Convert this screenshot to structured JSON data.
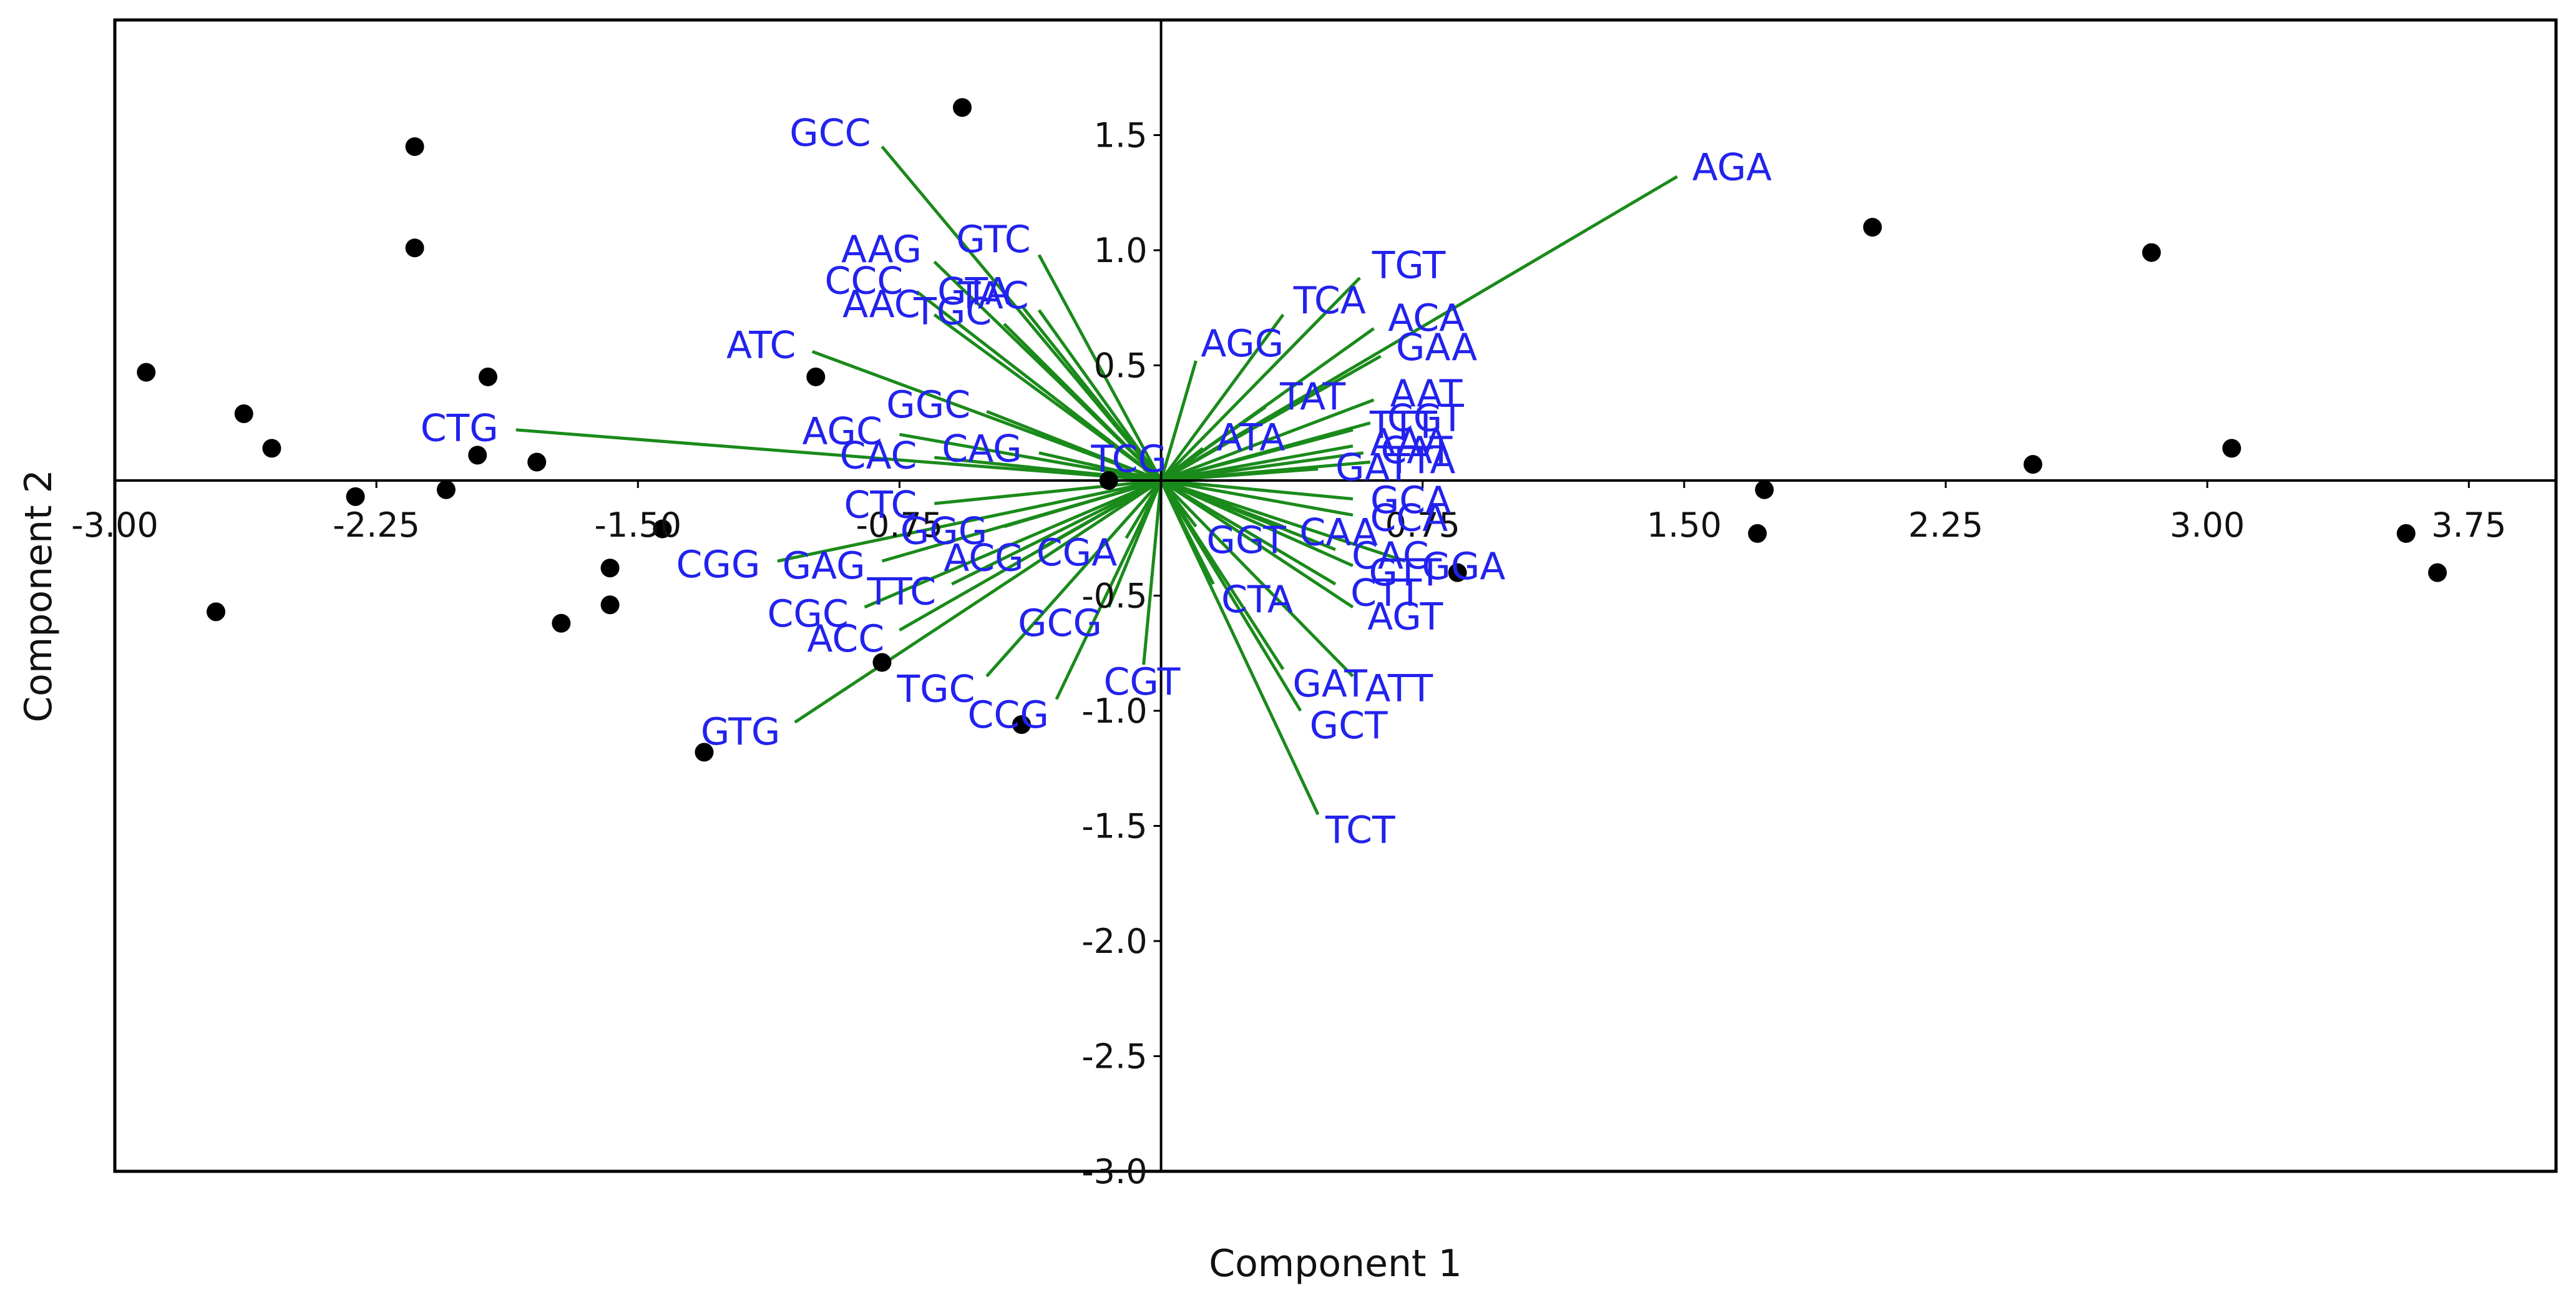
{
  "chart_data": {
    "type": "scatter",
    "subtype": "biplot",
    "title": "",
    "xlabel": "Component 1",
    "ylabel": "Component 2",
    "xlim": [
      -3.0,
      4.0
    ],
    "ylim": [
      -3.0,
      2.0
    ],
    "x_ticks": [
      "-3.00",
      "-2.25",
      "-1.50",
      "-0.75",
      "0.75",
      "1.50",
      "2.25",
      "3.00",
      "3.75"
    ],
    "y_ticks": [
      "1.5",
      "1.0",
      "0.5",
      "-0.5",
      "-1.0",
      "-1.5",
      "-2.0",
      "-2.5",
      "-3.0"
    ],
    "grid": false,
    "colors": {
      "points": "#000000",
      "vectors": "#1a8a1a",
      "vector_labels": "#2222ee",
      "axes": "#000000"
    },
    "scores": [
      {
        "x": -2.91,
        "y": 0.47
      },
      {
        "x": -2.71,
        "y": -0.57
      },
      {
        "x": -2.63,
        "y": 0.29
      },
      {
        "x": -2.55,
        "y": 0.14
      },
      {
        "x": -2.31,
        "y": -0.07
      },
      {
        "x": -2.14,
        "y": 1.45
      },
      {
        "x": -2.14,
        "y": 1.01
      },
      {
        "x": -2.05,
        "y": -0.04
      },
      {
        "x": -1.96,
        "y": 0.11
      },
      {
        "x": -1.93,
        "y": 0.45
      },
      {
        "x": -1.79,
        "y": 0.08
      },
      {
        "x": -1.72,
        "y": -0.62
      },
      {
        "x": -1.58,
        "y": -0.38
      },
      {
        "x": -1.58,
        "y": -0.54
      },
      {
        "x": -1.43,
        "y": -0.21
      },
      {
        "x": -1.31,
        "y": -1.18
      },
      {
        "x": -0.99,
        "y": 0.45
      },
      {
        "x": -0.8,
        "y": -0.79
      },
      {
        "x": -0.57,
        "y": 1.62
      },
      {
        "x": -0.4,
        "y": -1.06
      },
      {
        "x": -0.15,
        "y": 0.0
      },
      {
        "x": 0.85,
        "y": -0.4
      },
      {
        "x": 1.71,
        "y": -0.23
      },
      {
        "x": 1.73,
        "y": -0.04
      },
      {
        "x": 2.04,
        "y": 1.1
      },
      {
        "x": 2.5,
        "y": 0.07
      },
      {
        "x": 2.84,
        "y": 0.99
      },
      {
        "x": 3.07,
        "y": 0.14
      },
      {
        "x": 3.57,
        "y": -0.23
      },
      {
        "x": 3.66,
        "y": -0.4
      }
    ],
    "loadings": [
      {
        "label": "AGA",
        "x": 1.48,
        "y": 1.32
      },
      {
        "label": "TGT",
        "x": 0.57,
        "y": 0.88
      },
      {
        "label": "TCA",
        "x": 0.35,
        "y": 0.72
      },
      {
        "label": "ACA",
        "x": 0.61,
        "y": 0.66
      },
      {
        "label": "AGG",
        "x": 0.1,
        "y": 0.52
      },
      {
        "label": "GAA",
        "x": 0.63,
        "y": 0.54
      },
      {
        "label": "TAT",
        "x": 0.3,
        "y": 0.32
      },
      {
        "label": "AAT",
        "x": 0.61,
        "y": 0.35
      },
      {
        "label": "TTT",
        "x": 0.55,
        "y": 0.22
      },
      {
        "label": "CGT",
        "x": 0.6,
        "y": 0.25
      },
      {
        "label": "ATA",
        "x": 0.12,
        "y": 0.14
      },
      {
        "label": "AAA",
        "x": 0.55,
        "y": 0.15
      },
      {
        "label": "CAT",
        "x": 0.58,
        "y": 0.12
      },
      {
        "label": "TTA",
        "x": 0.6,
        "y": 0.08
      },
      {
        "label": "GAT",
        "x": 0.45,
        "y": 0.05
      },
      {
        "label": "TCG",
        "x": -0.05,
        "y": 0.05
      },
      {
        "label": "GCA",
        "x": 0.55,
        "y": -0.08
      },
      {
        "label": "CCA",
        "x": 0.55,
        "y": -0.15
      },
      {
        "label": "CAA",
        "x": 0.35,
        "y": -0.2
      },
      {
        "label": "CAC",
        "x": 0.5,
        "y": -0.3
      },
      {
        "label": "GTT",
        "x": 0.55,
        "y": -0.37
      },
      {
        "label": "GGA",
        "x": 0.7,
        "y": -0.35
      },
      {
        "label": "CTT",
        "x": 0.5,
        "y": -0.45
      },
      {
        "label": "AGT",
        "x": 0.55,
        "y": -0.55
      },
      {
        "label": "GGT",
        "x": 0.1,
        "y": -0.2
      },
      {
        "label": "CTA",
        "x": 0.15,
        "y": -0.45
      },
      {
        "label": "GAT",
        "x": 0.35,
        "y": -0.82
      },
      {
        "label": "ATT",
        "x": 0.55,
        "y": -0.85
      },
      {
        "label": "GCT",
        "x": 0.4,
        "y": -1.0
      },
      {
        "label": "TCT",
        "x": 0.45,
        "y": -1.45
      },
      {
        "label": "CGT",
        "x": -0.05,
        "y": -0.8
      },
      {
        "label": "CGA",
        "x": -0.1,
        "y": -0.25
      },
      {
        "label": "GCG",
        "x": -0.15,
        "y": -0.55
      },
      {
        "label": "CCG",
        "x": -0.3,
        "y": -0.95
      },
      {
        "label": "TGC",
        "x": -0.5,
        "y": -0.85
      },
      {
        "label": "ACG",
        "x": -0.35,
        "y": -0.3
      },
      {
        "label": "GGG",
        "x": -0.45,
        "y": -0.2
      },
      {
        "label": "CTC",
        "x": -0.65,
        "y": -0.1
      },
      {
        "label": "TTC",
        "x": -0.6,
        "y": -0.45
      },
      {
        "label": "ACC",
        "x": -0.75,
        "y": -0.65
      },
      {
        "label": "GAG",
        "x": -0.8,
        "y": -0.35
      },
      {
        "label": "CGC",
        "x": -0.85,
        "y": -0.55
      },
      {
        "label": "GTG",
        "x": -1.05,
        "y": -1.05
      },
      {
        "label": "CGG",
        "x": -1.1,
        "y": -0.35
      },
      {
        "label": "CTG",
        "x": -1.85,
        "y": 0.22
      },
      {
        "label": "CAC",
        "x": -0.65,
        "y": 0.1
      },
      {
        "label": "CAG",
        "x": -0.35,
        "y": 0.12
      },
      {
        "label": "GGC",
        "x": -0.5,
        "y": 0.3
      },
      {
        "label": "AGC",
        "x": -0.75,
        "y": 0.2
      },
      {
        "label": "ATC",
        "x": -1.0,
        "y": 0.56
      },
      {
        "label": "AAC",
        "x": -0.65,
        "y": 0.72
      },
      {
        "label": "TGC",
        "x": -0.45,
        "y": 0.68
      },
      {
        "label": "GTA",
        "x": -0.4,
        "y": 0.76
      },
      {
        "label": "TAC",
        "x": -0.35,
        "y": 0.74
      },
      {
        "label": "CCC",
        "x": -0.7,
        "y": 0.82
      },
      {
        "label": "AAG",
        "x": -0.65,
        "y": 0.95
      },
      {
        "label": "GTC",
        "x": -0.35,
        "y": 0.98
      },
      {
        "label": "GCC",
        "x": -0.8,
        "y": 1.45
      }
    ]
  }
}
